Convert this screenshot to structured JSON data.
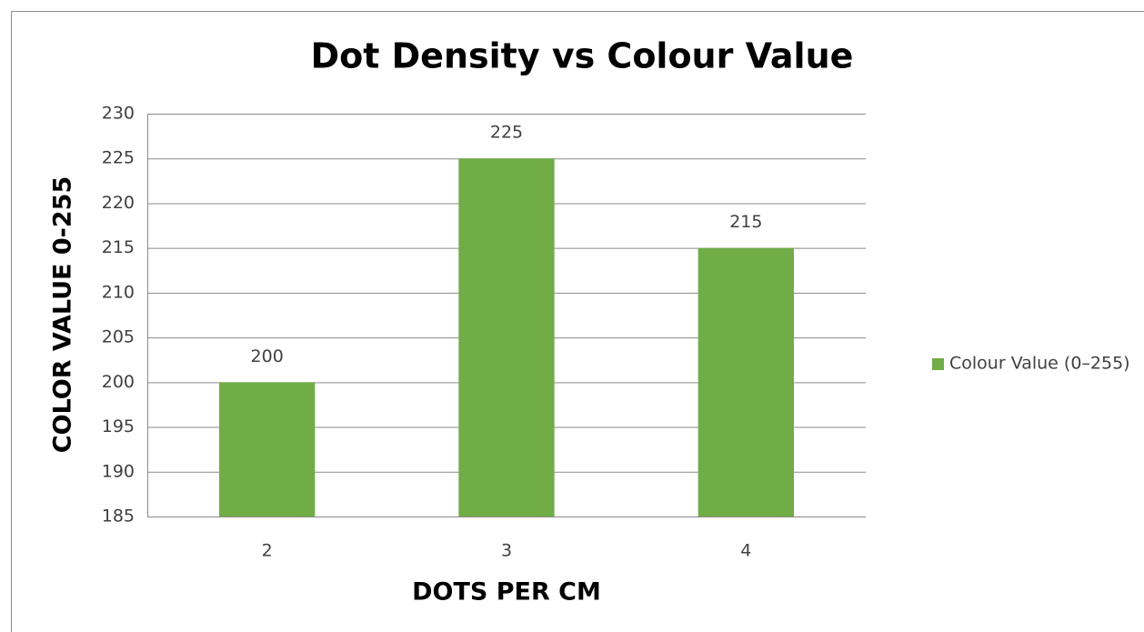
{
  "chart_data": {
    "type": "bar",
    "title": "Dot Density vs Colour Value",
    "x_label": "DOTS PER CM",
    "y_label": "COLOR VALUE 0-255",
    "categories": [
      "2",
      "3",
      "4"
    ],
    "series": [
      {
        "name": "Colour Value (0–255)",
        "color": "#70ad47",
        "values": [
          200,
          225,
          215
        ]
      }
    ],
    "ylim": [
      185,
      230
    ],
    "yticks": [
      185,
      190,
      195,
      200,
      205,
      210,
      215,
      220,
      225,
      230
    ],
    "grid": true,
    "legend": "right"
  }
}
